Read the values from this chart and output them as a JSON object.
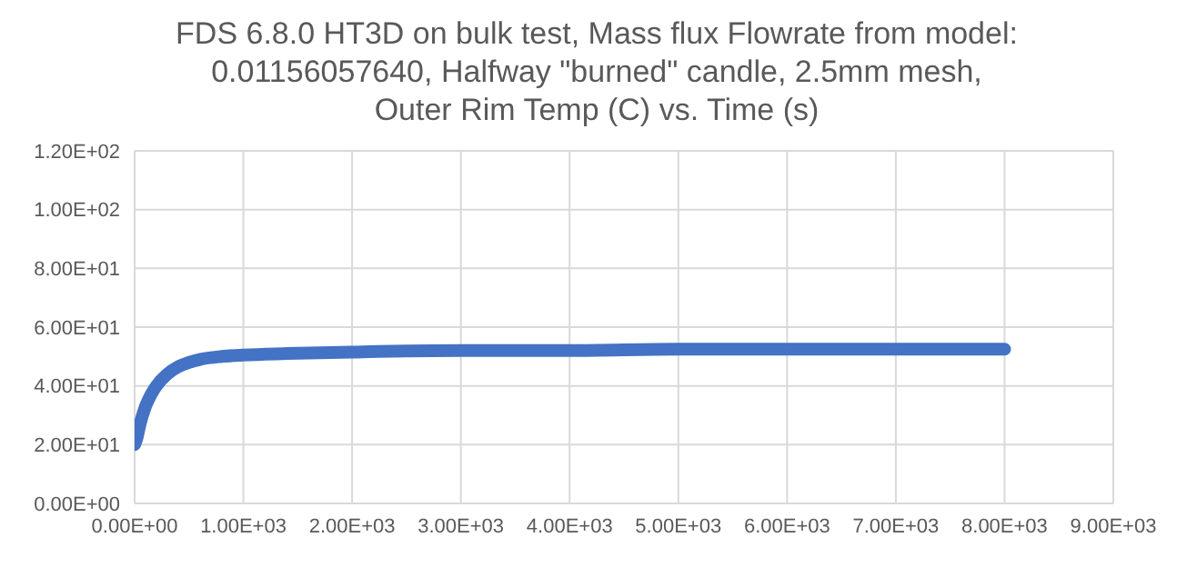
{
  "chart_data": {
    "type": "line",
    "title": "FDS 6.8.0 HT3D on bulk test, Mass flux Flowrate from model: 0.01156057640, Halfway \"burned\" candle, 2.5mm mesh, Outer Rim Temp (C) vs. Time (s)",
    "x": [
      0,
      20,
      50,
      100,
      150,
      200,
      300,
      400,
      500,
      600,
      800,
      1000,
      1400,
      2000,
      3000,
      4000,
      5000,
      6000,
      7000,
      8000
    ],
    "series": [
      {
        "color": "#4472c4",
        "values": [
          20,
          22,
          27,
          33,
          37,
          40,
          44,
          46.5,
          48,
          49,
          50,
          50.5,
          51,
          51.5,
          52,
          52,
          52.5,
          52.5,
          52.5,
          52.5
        ]
      }
    ],
    "xlim": [
      0,
      9000
    ],
    "xticks": [
      {
        "value": 0,
        "label": "0.00E+00"
      },
      {
        "value": 1000,
        "label": "1.00E+03"
      },
      {
        "value": 2000,
        "label": "2.00E+03"
      },
      {
        "value": 3000,
        "label": "3.00E+03"
      },
      {
        "value": 4000,
        "label": "4.00E+03"
      },
      {
        "value": 5000,
        "label": "5.00E+03"
      },
      {
        "value": 6000,
        "label": "6.00E+03"
      },
      {
        "value": 7000,
        "label": "7.00E+03"
      },
      {
        "value": 8000,
        "label": "8.00E+03"
      },
      {
        "value": 9000,
        "label": "9.00E+03"
      }
    ],
    "ylim": [
      0,
      120
    ],
    "yticks": [
      {
        "value": 0,
        "label": "0.00E+00"
      },
      {
        "value": 20,
        "label": "2.00E+01"
      },
      {
        "value": 40,
        "label": "4.00E+01"
      },
      {
        "value": 60,
        "label": "6.00E+01"
      },
      {
        "value": 80,
        "label": "8.00E+01"
      },
      {
        "value": 100,
        "label": "1.00E+02"
      },
      {
        "value": 120,
        "label": "1.20E+02"
      }
    ],
    "grid": true,
    "marker": "none",
    "line_style": "solid"
  }
}
